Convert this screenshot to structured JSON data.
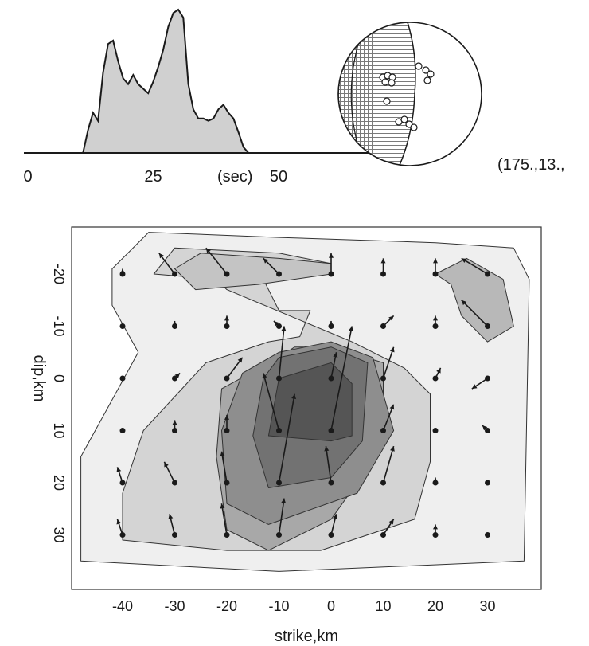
{
  "chart_data": [
    {
      "type": "area",
      "name": "source-time-function",
      "xlabel": "(sec)",
      "x_ticks": [
        "0",
        "25",
        "50"
      ],
      "xlim": [
        0,
        68
      ],
      "x": [
        0,
        11,
        12,
        13,
        14,
        15,
        16,
        17,
        18,
        19,
        20,
        21,
        22,
        23,
        24,
        25,
        26,
        27,
        28,
        29,
        30,
        31,
        32,
        33,
        34,
        35,
        36,
        37,
        38,
        39,
        40,
        41,
        42,
        43,
        44,
        45,
        68
      ],
      "y": [
        0,
        0,
        20,
        35,
        28,
        70,
        95,
        98,
        80,
        65,
        60,
        68,
        60,
        56,
        52,
        62,
        75,
        90,
        110,
        122,
        125,
        118,
        60,
        38,
        30,
        30,
        28,
        30,
        38,
        42,
        35,
        30,
        18,
        5,
        0,
        0,
        0
      ]
    },
    {
      "type": "scatter",
      "name": "focal-mechanism",
      "annotation": "(175.,13.,"
    },
    {
      "type": "heatmap",
      "name": "slip-distribution",
      "xlabel": "strike,km",
      "ylabel": "dip,km",
      "x_ticks": [
        "-40",
        "-30",
        "-20",
        "-10",
        "0",
        "10",
        "20",
        "30"
      ],
      "y_ticks": [
        "-20",
        "-10",
        "0",
        "10",
        "20",
        "30"
      ],
      "xlim": [
        -49,
        40
      ],
      "ylim": [
        -30,
        40
      ],
      "grid_strike": [
        -40,
        -30,
        -20,
        -10,
        0,
        10,
        20,
        30
      ],
      "grid_dip": [
        -20,
        -10,
        0,
        10,
        20,
        30
      ],
      "contours": [
        [
          [
            -42,
            -21
          ],
          [
            -35,
            -28
          ],
          [
            -10,
            -27
          ],
          [
            20,
            -26
          ],
          [
            35,
            -25
          ],
          [
            38,
            -19
          ],
          [
            37,
            35
          ],
          [
            -10,
            37
          ],
          [
            -48,
            35
          ],
          [
            -48,
            15
          ],
          [
            -37,
            -5
          ],
          [
            -42,
            -14
          ]
        ],
        [
          [
            -34,
            -20
          ],
          [
            -30,
            -25
          ],
          [
            -10,
            -24
          ],
          [
            0,
            -22
          ],
          [
            0,
            -20
          ],
          [
            -13,
            -19
          ],
          [
            -10,
            -13
          ],
          [
            -4,
            -13
          ],
          [
            -6,
            -8
          ],
          [
            -12,
            -7
          ],
          [
            -24,
            -3
          ],
          [
            -36,
            10
          ],
          [
            -40,
            22
          ],
          [
            -40,
            31
          ],
          [
            -20,
            33
          ],
          [
            -2,
            33
          ],
          [
            16,
            27
          ],
          [
            19,
            16
          ],
          [
            19,
            3
          ],
          [
            14,
            -2
          ],
          [
            4,
            -7
          ],
          [
            -20,
            -17
          ],
          [
            -22,
            -19
          ]
        ],
        [
          [
            -30,
            -21
          ],
          [
            -25,
            -24
          ],
          [
            -10,
            -23
          ],
          [
            0,
            -22
          ],
          [
            0,
            -20
          ],
          [
            -14,
            -18
          ],
          [
            -26,
            -17
          ]
        ],
        [
          [
            -7,
            -6
          ],
          [
            0,
            -6
          ],
          [
            10,
            -3
          ],
          [
            10,
            13
          ],
          [
            0,
            27
          ],
          [
            -12,
            33
          ],
          [
            -20,
            29
          ],
          [
            -22,
            15
          ],
          [
            -21,
            2
          ],
          [
            -10,
            -4
          ]
        ],
        [
          [
            -17,
            -1
          ],
          [
            -10,
            -5
          ],
          [
            0,
            -7
          ],
          [
            8,
            -4
          ],
          [
            12,
            10
          ],
          [
            5,
            22
          ],
          [
            -12,
            28
          ],
          [
            -20,
            24
          ],
          [
            -21,
            10
          ]
        ],
        [
          [
            -10,
            -4
          ],
          [
            0,
            -6
          ],
          [
            7,
            -3
          ],
          [
            6,
            12
          ],
          [
            0,
            19
          ],
          [
            -12,
            21
          ],
          [
            -15,
            11
          ],
          [
            -13,
            0
          ]
        ],
        [
          [
            -10,
            0
          ],
          [
            0,
            -3
          ],
          [
            4,
            1
          ],
          [
            4,
            11
          ],
          [
            0,
            12
          ],
          [
            -12,
            11
          ],
          [
            -10,
            0
          ]
        ],
        [
          [
            20,
            -20
          ],
          [
            26,
            -23
          ],
          [
            33,
            -19
          ],
          [
            35,
            -10
          ],
          [
            30,
            -7
          ],
          [
            25,
            -12
          ],
          [
            23,
            -18
          ]
        ]
      ],
      "slip_vectors": [
        [
          -40,
          -20,
          -40,
          -21
        ],
        [
          -30,
          -20,
          -33,
          -24
        ],
        [
          -20,
          -20,
          -24,
          -25
        ],
        [
          -10,
          -20,
          -13,
          -23
        ],
        [
          0,
          -20,
          0,
          -24
        ],
        [
          10,
          -20,
          10,
          -23
        ],
        [
          20,
          -20,
          20,
          -23
        ],
        [
          30,
          -20,
          25,
          -23
        ],
        [
          -40,
          -10,
          -40,
          -10
        ],
        [
          -30,
          -10,
          -30,
          -11
        ],
        [
          -20,
          -10,
          -20,
          -12
        ],
        [
          -10,
          -10,
          -11,
          -11
        ],
        [
          0,
          -10,
          0,
          -11
        ],
        [
          10,
          -10,
          12,
          -12
        ],
        [
          20,
          -10,
          20,
          -12
        ],
        [
          30,
          -10,
          25,
          -15
        ],
        [
          -40,
          0,
          -40,
          0
        ],
        [
          -30,
          0,
          -29,
          -1
        ],
        [
          -20,
          0,
          -17,
          -4
        ],
        [
          -10,
          0,
          -9,
          -10
        ],
        [
          0,
          0,
          1,
          -5
        ],
        [
          10,
          0,
          12,
          -6
        ],
        [
          20,
          0,
          21,
          -2
        ],
        [
          30,
          0,
          27,
          2
        ],
        [
          -40,
          10,
          -40,
          10
        ],
        [
          -30,
          10,
          -30,
          8
        ],
        [
          -20,
          10,
          -20,
          7
        ],
        [
          -10,
          10,
          -13,
          -1
        ],
        [
          0,
          10,
          4,
          -10
        ],
        [
          10,
          10,
          12,
          5
        ],
        [
          20,
          10,
          20,
          10
        ],
        [
          30,
          10,
          29,
          9
        ],
        [
          -40,
          20,
          -41,
          17
        ],
        [
          -30,
          20,
          -32,
          16
        ],
        [
          -20,
          20,
          -21,
          14
        ],
        [
          -10,
          20,
          -7,
          3
        ],
        [
          0,
          20,
          -1,
          13
        ],
        [
          10,
          20,
          12,
          13
        ],
        [
          20,
          20,
          20,
          19
        ],
        [
          30,
          20,
          30,
          20
        ],
        [
          -40,
          30,
          -41,
          27
        ],
        [
          -30,
          30,
          -31,
          26
        ],
        [
          -20,
          30,
          -21,
          24
        ],
        [
          -10,
          30,
          -9,
          23
        ],
        [
          0,
          30,
          1,
          26
        ],
        [
          10,
          30,
          12,
          27
        ],
        [
          20,
          30,
          20,
          28
        ],
        [
          30,
          30,
          30,
          30
        ]
      ]
    }
  ],
  "colors": {
    "stf_fill": "#d0d0d0",
    "line": "#1a1a1a",
    "beachball_hatch": "#8a8a8a",
    "contour_fills": [
      "#efefef",
      "#d4d4d4",
      "#c4c4c4",
      "#a8a8a8",
      "#8e8e8e",
      "#727272",
      "#555555",
      "#b8b8b8"
    ]
  }
}
